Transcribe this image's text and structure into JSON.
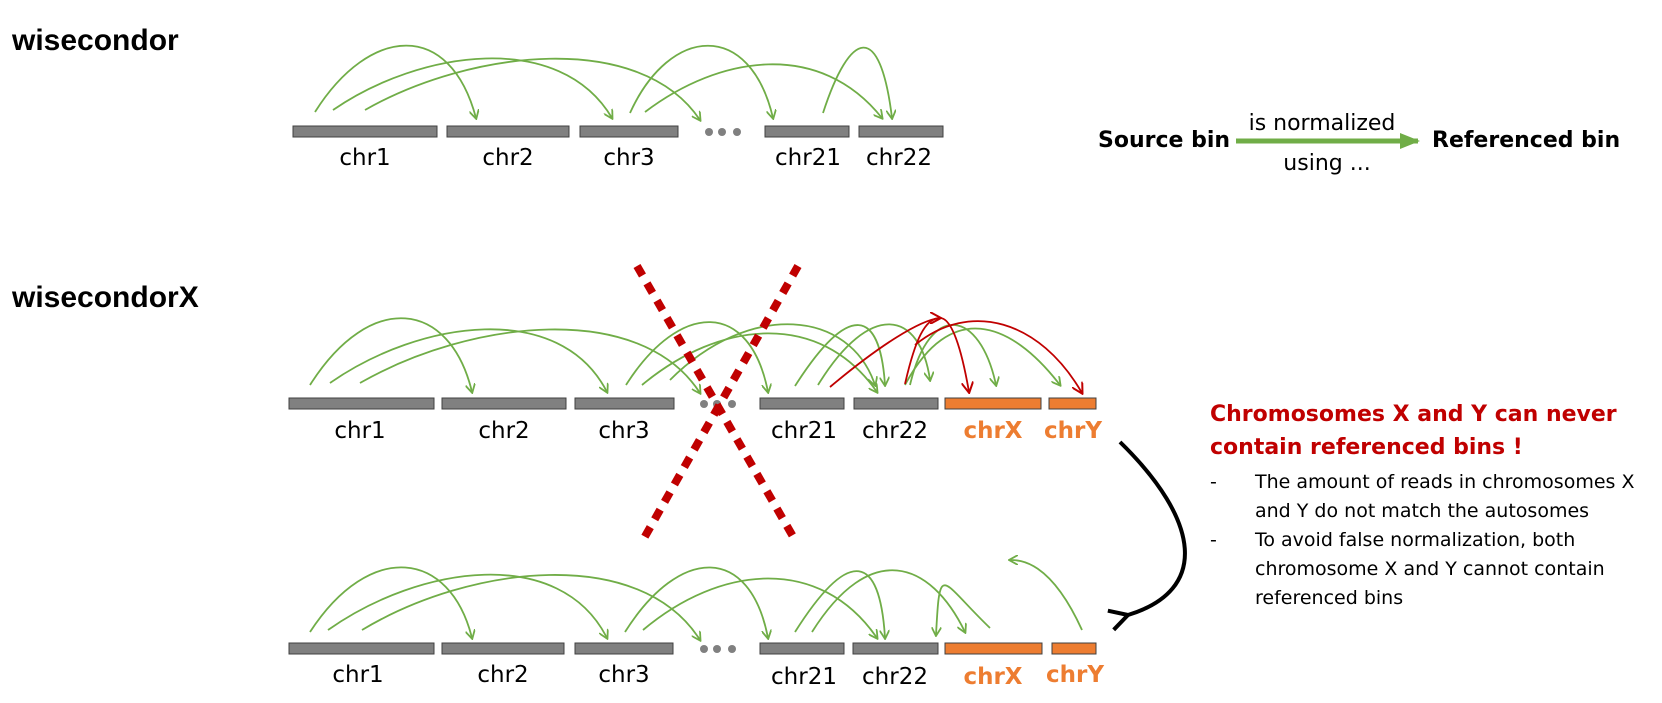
{
  "titles": {
    "top": "wisecondor",
    "bottom": "wisecondorX"
  },
  "chromosomes": {
    "autosomes": [
      "chr1",
      "chr2",
      "chr3",
      "chr21",
      "chr22"
    ],
    "sex": [
      "chrX",
      "chrY"
    ]
  },
  "legend": {
    "source": "Source bin",
    "arrow_top": "is normalized",
    "arrow_bottom": "using ...",
    "target": "Referenced bin"
  },
  "note": {
    "heading_line1": "Chromosomes X and Y can never",
    "heading_line2": "contain referenced bins !",
    "items": [
      {
        "dash": "-",
        "line1": "The amount of reads in chromosomes X",
        "line2": "and Y do not match the autosomes"
      },
      {
        "dash": "-",
        "line1": "To avoid false normalization, both",
        "line2": "chromosome X and Y cannot contain",
        "line3": "referenced bins"
      }
    ]
  },
  "colors": {
    "bar": "#808080",
    "sex_bar": "#ED7D31",
    "arrow_green": "#70AD47",
    "arrow_red": "#C00000",
    "cross": "#C00000"
  }
}
